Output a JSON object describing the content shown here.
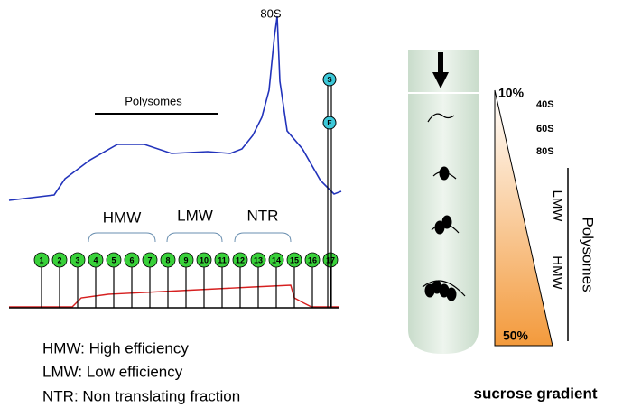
{
  "profile": {
    "peak_label": "80S",
    "polysomes_label": "Polysomes",
    "groups": [
      "HMW",
      "LMW",
      "NTR"
    ],
    "fractions": [
      "1",
      "2",
      "3",
      "4",
      "5",
      "6",
      "7",
      "8",
      "9",
      "10",
      "11",
      "12",
      "13",
      "14",
      "15",
      "16",
      "17"
    ],
    "markers": [
      "S",
      "E"
    ]
  },
  "legend": [
    "HMW: High efficiency",
    "LMW: Low efficiency",
    "NTR:  Non translating fraction"
  ],
  "gradient": {
    "top_percent": "10%",
    "bottom_percent": "50%",
    "subunits": [
      "40S",
      "60S",
      "80S"
    ],
    "fractions": [
      "LMW",
      "HMW"
    ],
    "polysomes": "Polysomes",
    "caption": "sucrose gradient"
  }
}
